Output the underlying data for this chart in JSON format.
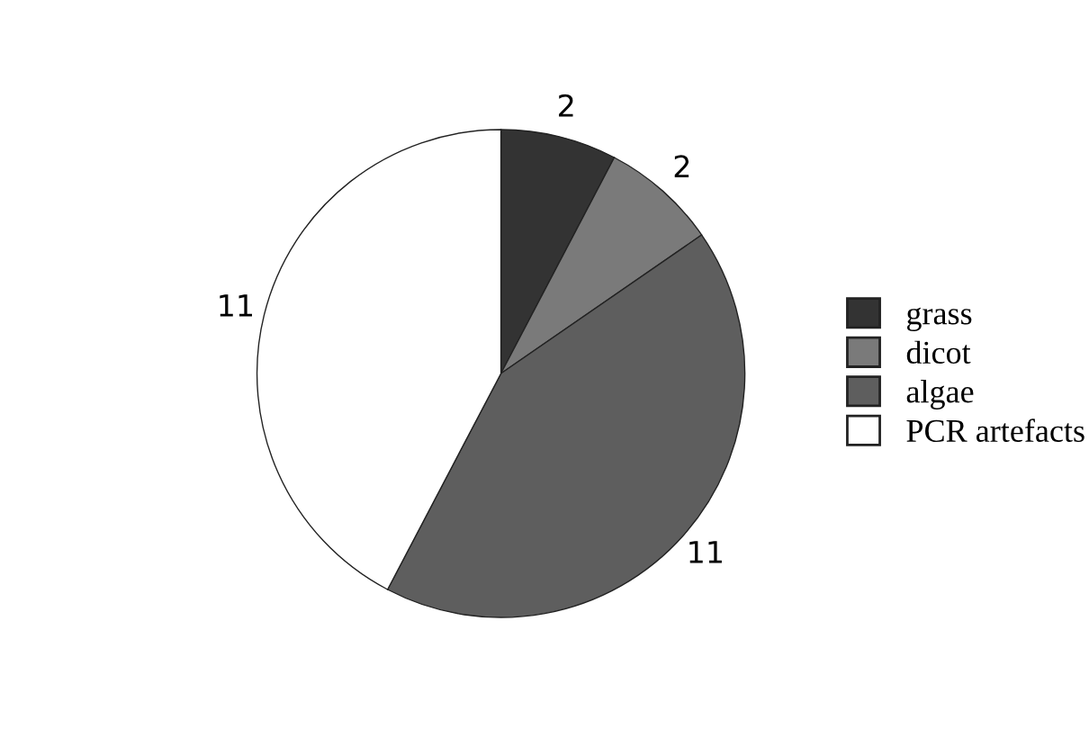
{
  "chart_data": {
    "type": "pie",
    "categories": [
      "grass",
      "dicot",
      "algae",
      "PCR artefacts"
    ],
    "values": [
      2,
      2,
      11,
      11
    ],
    "colors": [
      "#333333",
      "#7a7a7a",
      "#5e5e5e",
      "#ffffff"
    ],
    "data_labels": true,
    "legend": "right"
  }
}
